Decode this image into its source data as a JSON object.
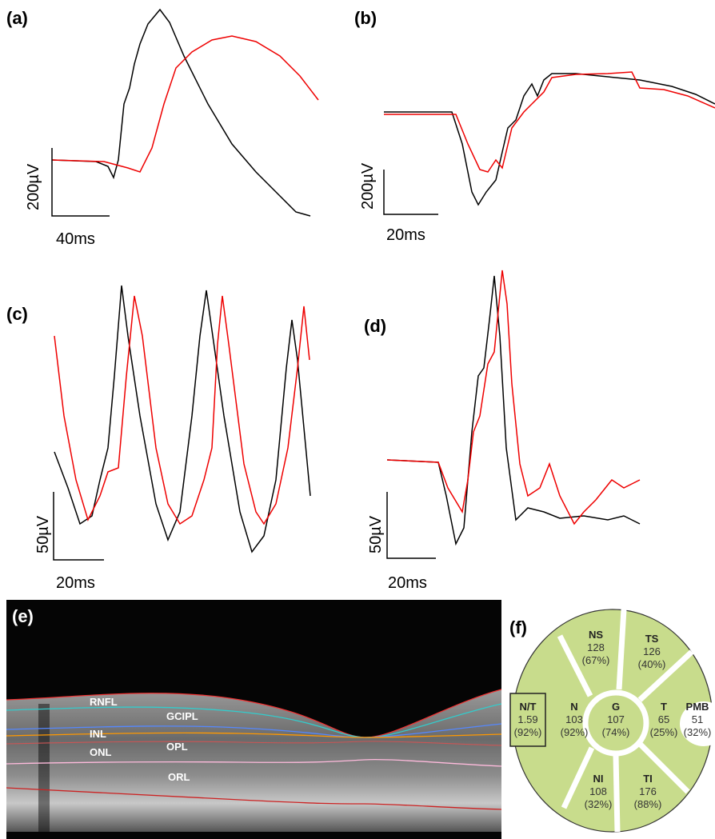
{
  "panels": [
    {
      "label": "(a)",
      "y_scale": "200µV",
      "x_scale": "40ms"
    },
    {
      "label": "(b)",
      "y_scale": "200µV",
      "x_scale": "20ms"
    },
    {
      "label": "(c)",
      "y_scale": "50µV",
      "x_scale": "20ms"
    },
    {
      "label": "(d)",
      "y_scale": "50µV",
      "x_scale": "20ms"
    }
  ],
  "oct": {
    "label": "(e)",
    "layers": [
      "RNFL",
      "GCIPL",
      "INL",
      "OPL",
      "ONL",
      "ORL"
    ]
  },
  "sectors": {
    "label": "(f)",
    "items": [
      {
        "name": "NS",
        "value": 128,
        "percent": "(67%)"
      },
      {
        "name": "TS",
        "value": 126,
        "percent": "(40%)"
      },
      {
        "name": "N",
        "value": 103,
        "percent": "(92%)"
      },
      {
        "name": "G",
        "value": 107,
        "percent": "(74%)"
      },
      {
        "name": "T",
        "value": 65,
        "percent": "(25%)"
      },
      {
        "name": "NI",
        "value": 108,
        "percent": "(32%)"
      },
      {
        "name": "TI",
        "value": 176,
        "percent": "(88%)"
      },
      {
        "name": "N/T",
        "value": 1.59,
        "percent": "(92%)"
      },
      {
        "name": "PMB",
        "value": 51,
        "percent": "(32%)"
      }
    ]
  }
}
